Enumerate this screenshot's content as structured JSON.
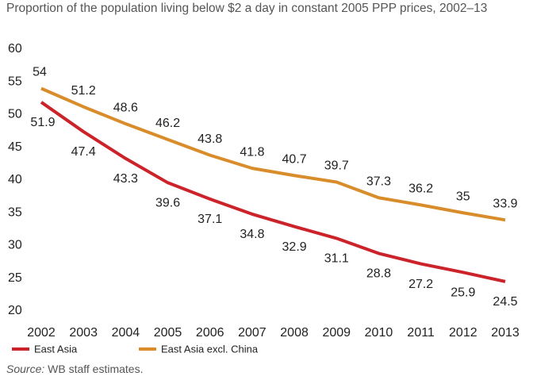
{
  "chart_data": {
    "type": "line",
    "title": "Proportion of the population living below $2 a day in constant 2005 PPP prices, 2002–13",
    "categories": [
      "2002",
      "2003",
      "2004",
      "2005",
      "2006",
      "2007",
      "2008",
      "2009",
      "2010",
      "2011",
      "2012",
      "2013"
    ],
    "series": [
      {
        "name": "East Asia",
        "color": "#cc2229",
        "values": [
          51.9,
          47.4,
          43.3,
          39.6,
          37.1,
          34.8,
          32.9,
          31.1,
          28.8,
          27.2,
          25.9,
          24.5
        ]
      },
      {
        "name": "East Asia excl. China",
        "color": "#d98c2a",
        "values": [
          54,
          51.2,
          48.6,
          46.2,
          43.8,
          41.8,
          40.7,
          39.7,
          37.3,
          36.2,
          35,
          33.9
        ]
      }
    ],
    "ylim": [
      20,
      60
    ],
    "yticks": [
      20,
      25,
      30,
      35,
      40,
      45,
      50,
      55,
      60
    ],
    "grid": false,
    "source_label": "Source:",
    "source_text": "WB staff estimates."
  }
}
